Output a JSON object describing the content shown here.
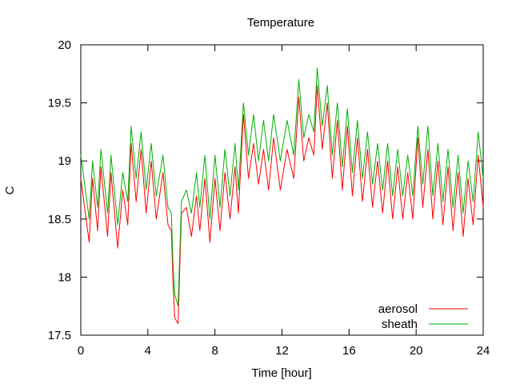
{
  "chart_data": {
    "type": "line",
    "title": "Temperature",
    "xlabel": "Time [hour]",
    "ylabel": "C",
    "xlim": [
      0,
      24
    ],
    "ylim": [
      17.5,
      20
    ],
    "xticks": [
      "0",
      "4",
      "8",
      "12",
      "16",
      "20",
      "24"
    ],
    "yticks": [
      "17.5",
      "18",
      "18.5",
      "19",
      "19.5",
      "20"
    ],
    "grid": false,
    "legend_position": "bottom-right",
    "series": [
      {
        "name": "aerosol",
        "color": "#ff0000",
        "points": [
          [
            0.0,
            18.85
          ],
          [
            0.5,
            18.3
          ],
          [
            0.7,
            18.85
          ],
          [
            1.0,
            18.4
          ],
          [
            1.2,
            18.95
          ],
          [
            1.6,
            18.35
          ],
          [
            1.8,
            18.9
          ],
          [
            2.2,
            18.25
          ],
          [
            2.5,
            18.75
          ],
          [
            2.8,
            18.45
          ],
          [
            3.0,
            19.15
          ],
          [
            3.3,
            18.65
          ],
          [
            3.6,
            19.1
          ],
          [
            3.9,
            18.55
          ],
          [
            4.2,
            19.0
          ],
          [
            4.5,
            18.5
          ],
          [
            4.9,
            18.9
          ],
          [
            5.2,
            18.45
          ],
          [
            5.4,
            18.4
          ],
          [
            5.5,
            17.95
          ],
          [
            5.6,
            17.65
          ],
          [
            5.8,
            17.6
          ],
          [
            6.0,
            18.55
          ],
          [
            6.3,
            18.6
          ],
          [
            6.6,
            18.35
          ],
          [
            6.9,
            18.7
          ],
          [
            7.1,
            18.4
          ],
          [
            7.4,
            18.85
          ],
          [
            7.7,
            18.3
          ],
          [
            8.0,
            18.85
          ],
          [
            8.3,
            18.4
          ],
          [
            8.6,
            18.9
          ],
          [
            8.9,
            18.5
          ],
          [
            9.2,
            18.95
          ],
          [
            9.4,
            18.55
          ],
          [
            9.7,
            19.4
          ],
          [
            10.0,
            18.85
          ],
          [
            10.3,
            19.15
          ],
          [
            10.6,
            18.8
          ],
          [
            10.9,
            19.1
          ],
          [
            11.2,
            18.75
          ],
          [
            11.5,
            19.2
          ],
          [
            11.9,
            18.75
          ],
          [
            12.3,
            19.1
          ],
          [
            12.7,
            18.85
          ],
          [
            13.0,
            19.55
          ],
          [
            13.3,
            19.0
          ],
          [
            13.6,
            19.2
          ],
          [
            13.9,
            19.05
          ],
          [
            14.1,
            19.65
          ],
          [
            14.4,
            19.1
          ],
          [
            14.7,
            19.5
          ],
          [
            15.0,
            18.85
          ],
          [
            15.3,
            19.35
          ],
          [
            15.6,
            18.75
          ],
          [
            15.9,
            19.3
          ],
          [
            16.2,
            18.7
          ],
          [
            16.5,
            19.2
          ],
          [
            16.8,
            18.65
          ],
          [
            17.1,
            19.1
          ],
          [
            17.4,
            18.6
          ],
          [
            17.7,
            19.0
          ],
          [
            18.0,
            18.55
          ],
          [
            18.3,
            19.0
          ],
          [
            18.6,
            18.5
          ],
          [
            18.9,
            18.95
          ],
          [
            19.2,
            18.5
          ],
          [
            19.5,
            18.9
          ],
          [
            19.8,
            18.5
          ],
          [
            20.1,
            19.2
          ],
          [
            20.4,
            18.6
          ],
          [
            20.7,
            19.1
          ],
          [
            21.0,
            18.5
          ],
          [
            21.3,
            19.0
          ],
          [
            21.6,
            18.45
          ],
          [
            21.9,
            18.95
          ],
          [
            22.2,
            18.4
          ],
          [
            22.5,
            18.9
          ],
          [
            22.8,
            18.35
          ],
          [
            23.1,
            18.85
          ],
          [
            23.4,
            18.45
          ],
          [
            23.7,
            19.05
          ],
          [
            24.0,
            18.6
          ]
        ]
      },
      {
        "name": "sheath",
        "color": "#00b000",
        "points": [
          [
            0.0,
            19.05
          ],
          [
            0.5,
            18.5
          ],
          [
            0.7,
            19.0
          ],
          [
            1.0,
            18.6
          ],
          [
            1.2,
            19.1
          ],
          [
            1.6,
            18.55
          ],
          [
            1.8,
            19.05
          ],
          [
            2.2,
            18.45
          ],
          [
            2.5,
            18.9
          ],
          [
            2.8,
            18.65
          ],
          [
            3.0,
            19.3
          ],
          [
            3.3,
            18.85
          ],
          [
            3.6,
            19.25
          ],
          [
            3.9,
            18.75
          ],
          [
            4.2,
            19.15
          ],
          [
            4.5,
            18.7
          ],
          [
            4.9,
            19.05
          ],
          [
            5.2,
            18.6
          ],
          [
            5.4,
            18.55
          ],
          [
            5.5,
            18.1
          ],
          [
            5.6,
            17.85
          ],
          [
            5.8,
            17.75
          ],
          [
            6.0,
            18.65
          ],
          [
            6.3,
            18.75
          ],
          [
            6.6,
            18.55
          ],
          [
            6.9,
            18.9
          ],
          [
            7.1,
            18.6
          ],
          [
            7.4,
            19.05
          ],
          [
            7.7,
            18.5
          ],
          [
            8.0,
            19.05
          ],
          [
            8.3,
            18.6
          ],
          [
            8.6,
            19.1
          ],
          [
            8.9,
            18.7
          ],
          [
            9.2,
            19.15
          ],
          [
            9.4,
            18.75
          ],
          [
            9.7,
            19.5
          ],
          [
            10.0,
            19.05
          ],
          [
            10.3,
            19.4
          ],
          [
            10.6,
            19.0
          ],
          [
            10.9,
            19.35
          ],
          [
            11.2,
            19.0
          ],
          [
            11.5,
            19.4
          ],
          [
            11.9,
            19.0
          ],
          [
            12.3,
            19.35
          ],
          [
            12.7,
            19.05
          ],
          [
            13.0,
            19.7
          ],
          [
            13.3,
            19.2
          ],
          [
            13.6,
            19.4
          ],
          [
            13.9,
            19.25
          ],
          [
            14.1,
            19.8
          ],
          [
            14.4,
            19.3
          ],
          [
            14.7,
            19.65
          ],
          [
            15.0,
            19.05
          ],
          [
            15.3,
            19.5
          ],
          [
            15.6,
            18.95
          ],
          [
            15.9,
            19.45
          ],
          [
            16.2,
            18.9
          ],
          [
            16.5,
            19.35
          ],
          [
            16.8,
            18.85
          ],
          [
            17.1,
            19.25
          ],
          [
            17.4,
            18.8
          ],
          [
            17.7,
            19.15
          ],
          [
            18.0,
            18.75
          ],
          [
            18.3,
            19.15
          ],
          [
            18.6,
            18.7
          ],
          [
            18.9,
            19.1
          ],
          [
            19.2,
            18.7
          ],
          [
            19.5,
            19.05
          ],
          [
            19.8,
            18.7
          ],
          [
            20.1,
            19.3
          ],
          [
            20.4,
            18.8
          ],
          [
            20.7,
            19.3
          ],
          [
            21.0,
            18.7
          ],
          [
            21.3,
            19.15
          ],
          [
            21.6,
            18.65
          ],
          [
            21.9,
            19.1
          ],
          [
            22.2,
            18.6
          ],
          [
            22.5,
            19.05
          ],
          [
            22.8,
            18.55
          ],
          [
            23.1,
            19.0
          ],
          [
            23.4,
            18.65
          ],
          [
            23.7,
            19.25
          ],
          [
            24.0,
            18.85
          ]
        ]
      }
    ]
  }
}
